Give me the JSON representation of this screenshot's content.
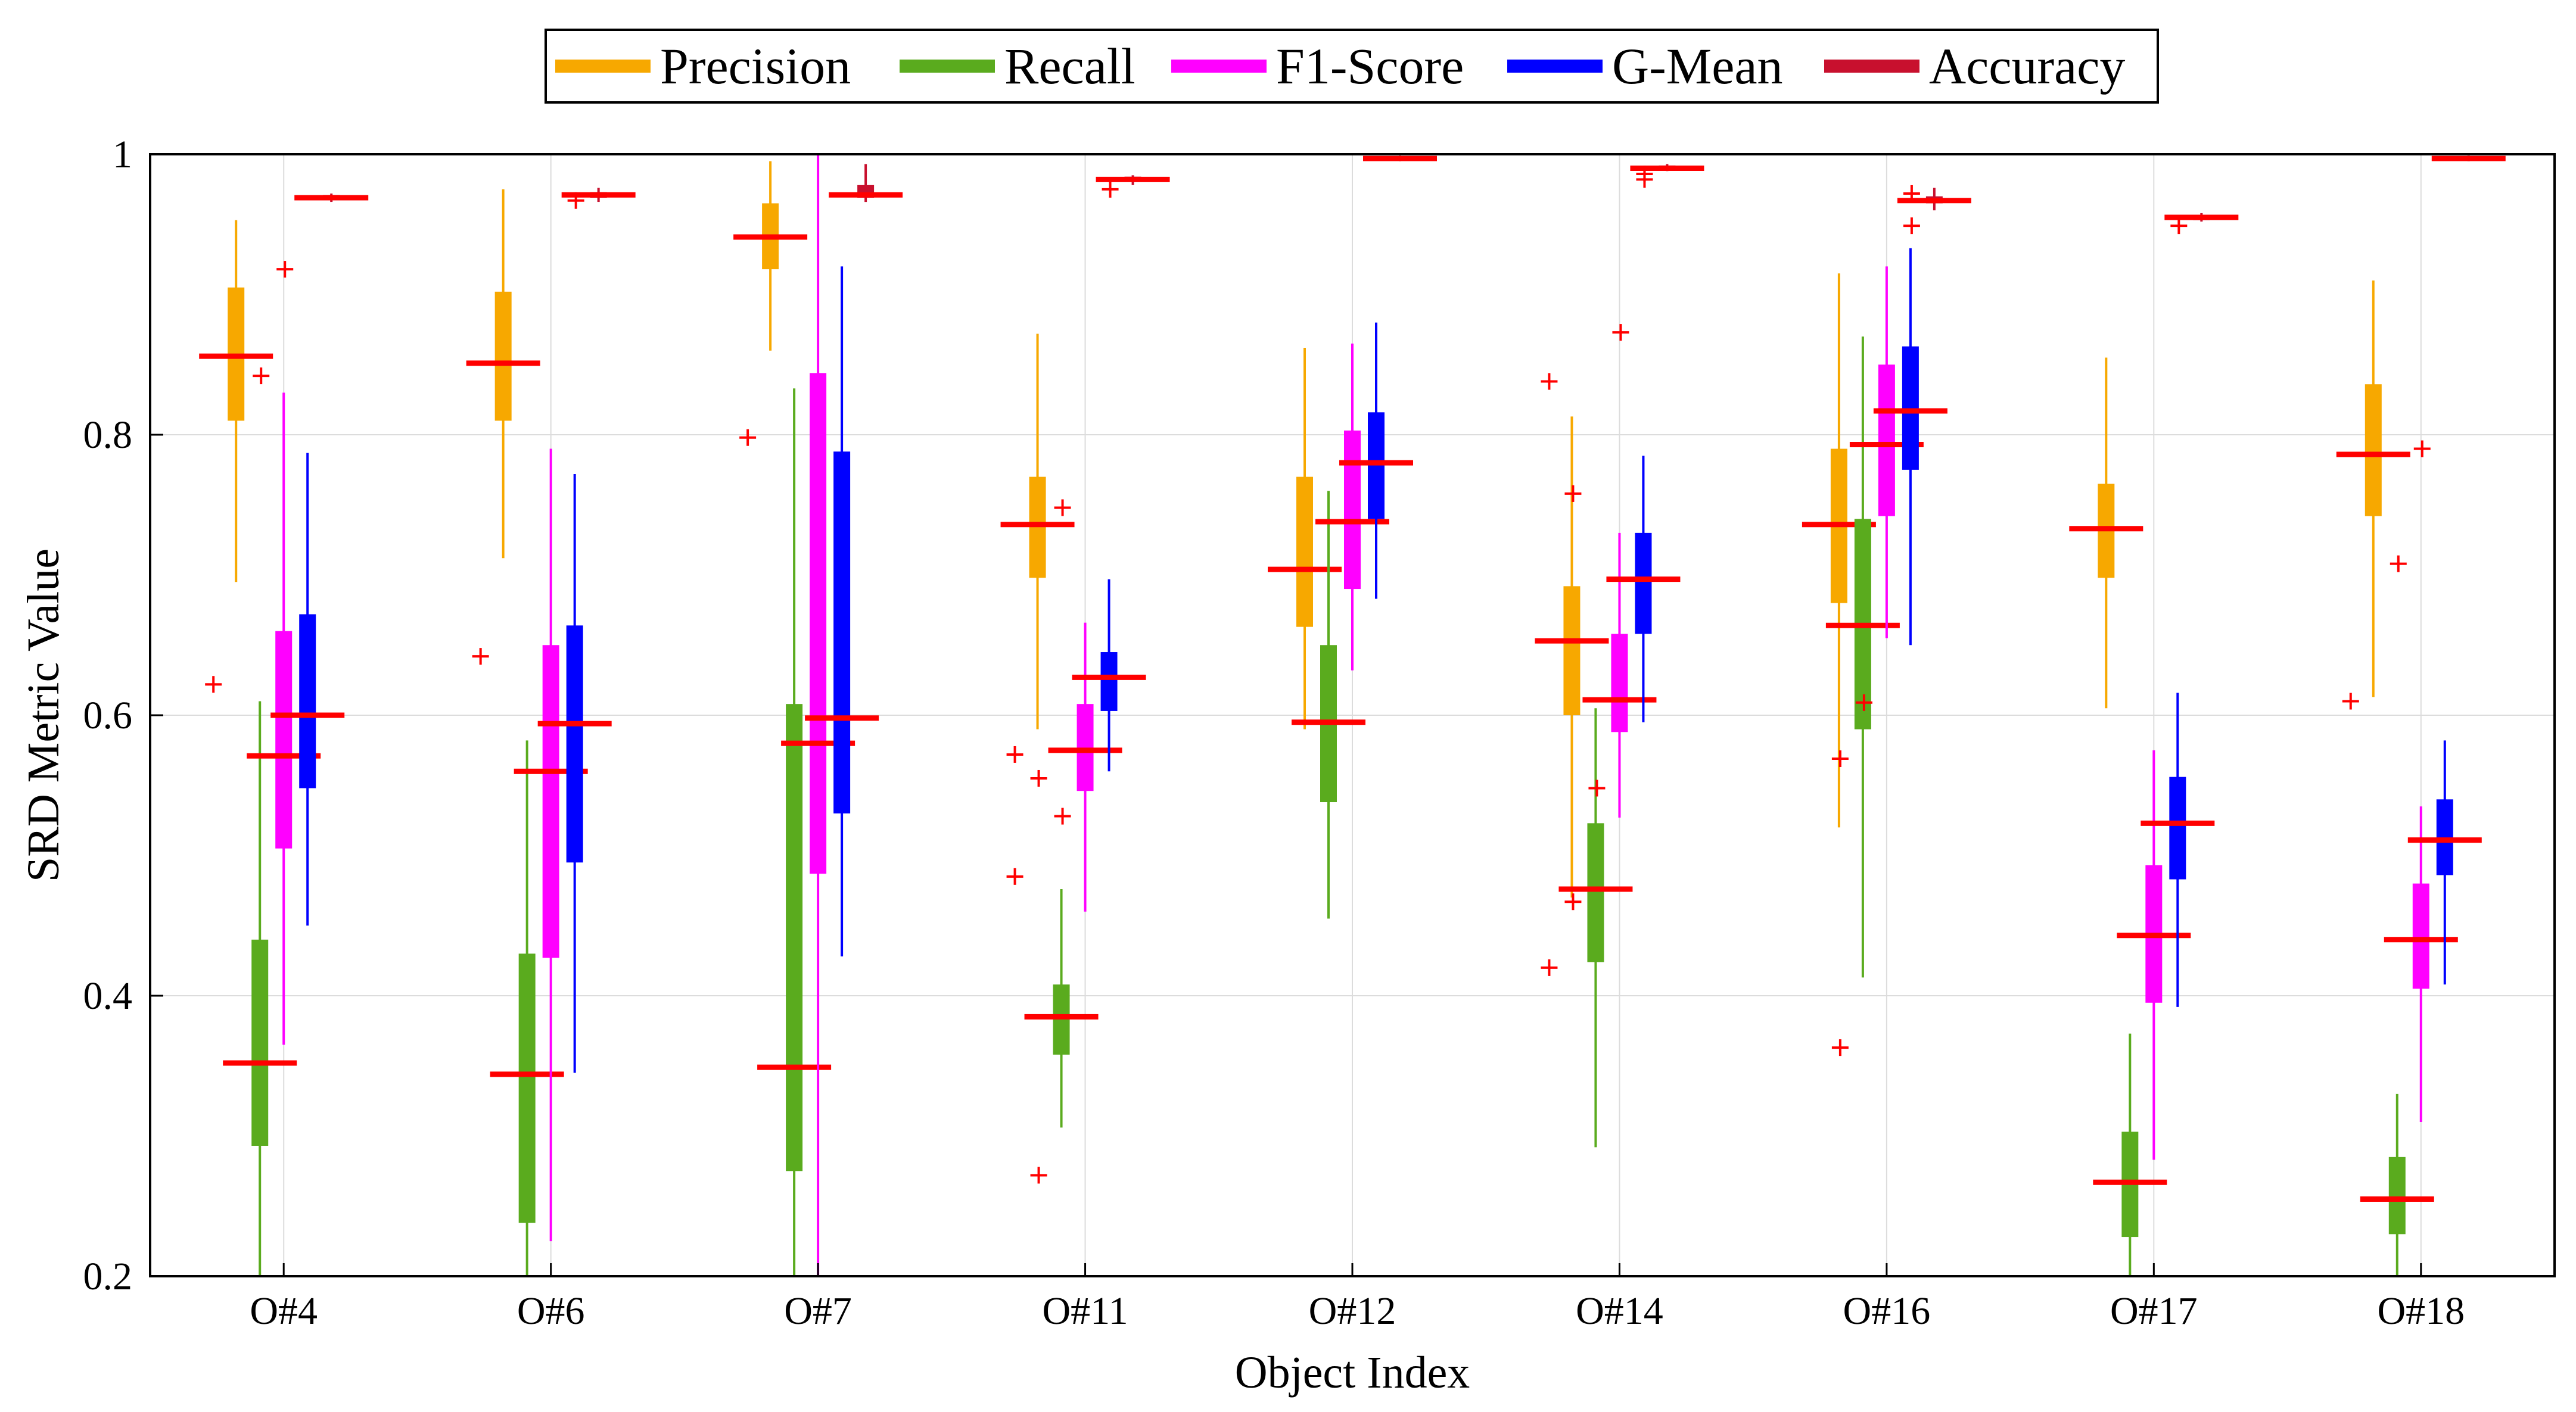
{
  "chart_data": {
    "type": "boxplot",
    "title": "",
    "xlabel": "Object Index",
    "ylabel": "SRD Metric Value",
    "ylim": [
      0.2,
      1.0
    ],
    "yticks": [
      0.2,
      0.4,
      0.6,
      0.8,
      1.0
    ],
    "ytick_labels": [
      "0.2",
      "0.4",
      "0.6",
      "0.8",
      "1"
    ],
    "grid": true,
    "legend_position": "top-center",
    "categories": [
      "O#4",
      "O#6",
      "O#7",
      "O#11",
      "O#12",
      "O#14",
      "O#16",
      "O#17",
      "O#18"
    ],
    "series": [
      {
        "name": "Precision",
        "color": "#f7a800",
        "boxes": [
          {
            "whisker_low": 0.695,
            "q1": 0.81,
            "median": 0.856,
            "q3": 0.905,
            "whisker_high": 0.953,
            "outliers": [
              0.622
            ]
          },
          {
            "whisker_low": 0.712,
            "q1": 0.81,
            "median": 0.851,
            "q3": 0.902,
            "whisker_high": 0.975,
            "outliers": [
              0.642
            ]
          },
          {
            "whisker_low": 0.86,
            "q1": 0.918,
            "median": 0.941,
            "q3": 0.965,
            "whisker_high": 0.995,
            "outliers": [
              0.798
            ]
          },
          {
            "whisker_low": 0.59,
            "q1": 0.698,
            "median": 0.736,
            "q3": 0.77,
            "whisker_high": 0.872,
            "outliers": [
              0.572,
              0.485
            ]
          },
          {
            "whisker_low": 0.59,
            "q1": 0.663,
            "median": 0.704,
            "q3": 0.77,
            "whisker_high": 0.862,
            "outliers": []
          },
          {
            "whisker_low": 0.47,
            "q1": 0.6,
            "median": 0.653,
            "q3": 0.692,
            "whisker_high": 0.813,
            "outliers": [
              0.838,
              0.42
            ]
          },
          {
            "whisker_low": 0.52,
            "q1": 0.68,
            "median": 0.736,
            "q3": 0.79,
            "whisker_high": 0.915,
            "outliers": []
          },
          {
            "whisker_low": 0.605,
            "q1": 0.698,
            "median": 0.733,
            "q3": 0.765,
            "whisker_high": 0.855,
            "outliers": []
          },
          {
            "whisker_low": 0.613,
            "q1": 0.742,
            "median": 0.786,
            "q3": 0.836,
            "whisker_high": 0.91,
            "outliers": [
              0.61
            ]
          }
        ]
      },
      {
        "name": "Recall",
        "color": "#5aab1e",
        "boxes": [
          {
            "whisker_low": 0.2,
            "q1": 0.293,
            "median": 0.352,
            "q3": 0.44,
            "whisker_high": 0.61,
            "outliers": []
          },
          {
            "whisker_low": 0.2,
            "q1": 0.238,
            "median": 0.344,
            "q3": 0.43,
            "whisker_high": 0.582,
            "outliers": []
          },
          {
            "whisker_low": 0.2,
            "q1": 0.275,
            "median": 0.349,
            "q3": 0.608,
            "whisker_high": 0.833,
            "outliers": []
          },
          {
            "whisker_low": 0.306,
            "q1": 0.358,
            "median": 0.385,
            "q3": 0.408,
            "whisker_high": 0.476,
            "outliers": [
              0.555,
              0.272
            ]
          },
          {
            "whisker_low": 0.455,
            "q1": 0.538,
            "median": 0.595,
            "q3": 0.65,
            "whisker_high": 0.76,
            "outliers": []
          },
          {
            "whisker_low": 0.292,
            "q1": 0.424,
            "median": 0.476,
            "q3": 0.523,
            "whisker_high": 0.605,
            "outliers": [
              0.758,
              0.467
            ]
          },
          {
            "whisker_low": 0.413,
            "q1": 0.59,
            "median": 0.664,
            "q3": 0.74,
            "whisker_high": 0.87,
            "outliers": [
              0.569,
              0.363
            ]
          },
          {
            "whisker_low": 0.2,
            "q1": 0.228,
            "median": 0.267,
            "q3": 0.303,
            "whisker_high": 0.373,
            "outliers": []
          },
          {
            "whisker_low": 0.2,
            "q1": 0.23,
            "median": 0.255,
            "q3": 0.285,
            "whisker_high": 0.33,
            "outliers": []
          }
        ]
      },
      {
        "name": "F1-Score",
        "color": "#ff00ff",
        "boxes": [
          {
            "whisker_low": 0.365,
            "q1": 0.505,
            "median": 0.571,
            "q3": 0.66,
            "whisker_high": 0.83,
            "outliers": [
              0.842
            ]
          },
          {
            "whisker_low": 0.225,
            "q1": 0.427,
            "median": 0.56,
            "q3": 0.65,
            "whisker_high": 0.79,
            "outliers": []
          },
          {
            "whisker_low": 0.2,
            "q1": 0.487,
            "median": 0.58,
            "q3": 0.844,
            "whisker_high": 1.0,
            "outliers": []
          },
          {
            "whisker_low": 0.46,
            "q1": 0.546,
            "median": 0.575,
            "q3": 0.608,
            "whisker_high": 0.666,
            "outliers": [
              0.748,
              0.528
            ]
          },
          {
            "whisker_low": 0.632,
            "q1": 0.69,
            "median": 0.738,
            "q3": 0.803,
            "whisker_high": 0.865,
            "outliers": []
          },
          {
            "whisker_low": 0.527,
            "q1": 0.588,
            "median": 0.611,
            "q3": 0.658,
            "whisker_high": 0.73,
            "outliers": [
              0.548
            ]
          },
          {
            "whisker_low": 0.655,
            "q1": 0.742,
            "median": 0.793,
            "q3": 0.85,
            "whisker_high": 0.92,
            "outliers": [
              0.609
            ]
          },
          {
            "whisker_low": 0.283,
            "q1": 0.395,
            "median": 0.443,
            "q3": 0.493,
            "whisker_high": 0.575,
            "outliers": []
          },
          {
            "whisker_low": 0.31,
            "q1": 0.405,
            "median": 0.44,
            "q3": 0.48,
            "whisker_high": 0.535,
            "outliers": [
              0.708
            ]
          }
        ]
      },
      {
        "name": "G-Mean",
        "color": "#0000ff",
        "boxes": [
          {
            "whisker_low": 0.45,
            "q1": 0.548,
            "median": 0.6,
            "q3": 0.672,
            "whisker_high": 0.787,
            "outliers": [
              0.918
            ]
          },
          {
            "whisker_low": 0.345,
            "q1": 0.495,
            "median": 0.594,
            "q3": 0.664,
            "whisker_high": 0.772,
            "outliers": []
          },
          {
            "whisker_low": 0.428,
            "q1": 0.53,
            "median": 0.598,
            "q3": 0.788,
            "whisker_high": 0.92,
            "outliers": []
          },
          {
            "whisker_low": 0.56,
            "q1": 0.603,
            "median": 0.627,
            "q3": 0.645,
            "whisker_high": 0.697,
            "outliers": []
          },
          {
            "whisker_low": 0.683,
            "q1": 0.74,
            "median": 0.78,
            "q3": 0.816,
            "whisker_high": 0.88,
            "outliers": []
          },
          {
            "whisker_low": 0.595,
            "q1": 0.658,
            "median": 0.697,
            "q3": 0.73,
            "whisker_high": 0.785,
            "outliers": [
              0.873
            ]
          },
          {
            "whisker_low": 0.65,
            "q1": 0.775,
            "median": 0.817,
            "q3": 0.863,
            "whisker_high": 0.933,
            "outliers": []
          },
          {
            "whisker_low": 0.392,
            "q1": 0.483,
            "median": 0.523,
            "q3": 0.556,
            "whisker_high": 0.616,
            "outliers": []
          },
          {
            "whisker_low": 0.408,
            "q1": 0.486,
            "median": 0.511,
            "q3": 0.54,
            "whisker_high": 0.582,
            "outliers": [
              0.79
            ]
          }
        ]
      },
      {
        "name": "Accuracy",
        "color": "#c8102e",
        "boxes": [
          {
            "whisker_low": 0.966,
            "q1": 0.968,
            "median": 0.969,
            "q3": 0.971,
            "whisker_high": 0.972,
            "outliers": []
          },
          {
            "whisker_low": 0.966,
            "q1": 0.969,
            "median": 0.971,
            "q3": 0.973,
            "whisker_high": 0.976,
            "outliers": [
              0.967
            ]
          },
          {
            "whisker_low": 0.966,
            "q1": 0.969,
            "median": 0.971,
            "q3": 0.978,
            "whisker_high": 0.993,
            "outliers": []
          },
          {
            "whisker_low": 0.978,
            "q1": 0.981,
            "median": 0.982,
            "q3": 0.984,
            "whisker_high": 0.985,
            "outliers": [
              0.975
            ]
          },
          {
            "whisker_low": 0.995,
            "q1": 0.996,
            "median": 0.997,
            "q3": 0.998,
            "whisker_high": 0.999,
            "outliers": []
          },
          {
            "whisker_low": 0.988,
            "q1": 0.989,
            "median": 0.99,
            "q3": 0.992,
            "whisker_high": 0.993,
            "outliers": [
              0.986,
              0.982
            ]
          },
          {
            "whisker_low": 0.96,
            "q1": 0.965,
            "median": 0.967,
            "q3": 0.97,
            "whisker_high": 0.976,
            "outliers": [
              0.949,
              0.972
            ]
          },
          {
            "whisker_low": 0.952,
            "q1": 0.953,
            "median": 0.955,
            "q3": 0.956,
            "whisker_high": 0.958,
            "outliers": [
              0.949
            ]
          },
          {
            "whisker_low": 0.995,
            "q1": 0.996,
            "median": 0.997,
            "q3": 0.998,
            "whisker_high": 0.999,
            "outliers": []
          }
        ]
      }
    ],
    "median_color": "#ff0000",
    "outlier_color": "#ff0000"
  }
}
